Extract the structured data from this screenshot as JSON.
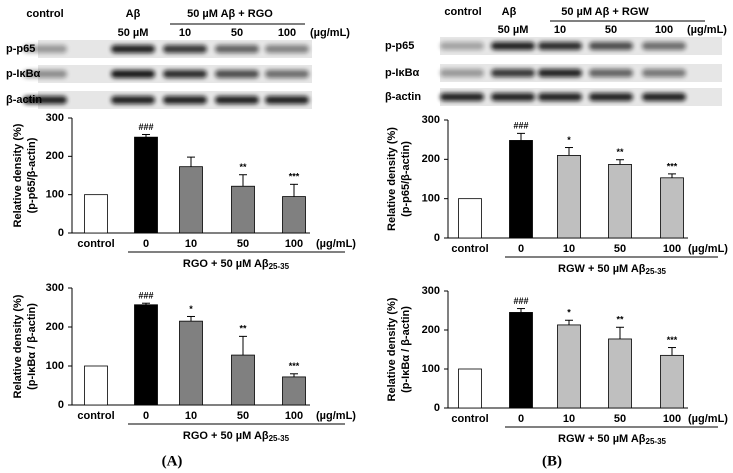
{
  "panels": [
    {
      "label": "(A)",
      "blot": {
        "header": [
          "control",
          "Aβ",
          "50 µM  Aβ  + RGO"
        ],
        "subheader": [
          "50 µM",
          "10",
          "50",
          "100",
          "(µg/mL)"
        ],
        "rows": [
          "p-p65",
          "p-IκBα",
          "β-actin"
        ]
      }
    },
    {
      "label": "(B)",
      "blot": {
        "header": [
          "control",
          "Aβ",
          "50 µM  Aβ  + RGW"
        ],
        "subheader": [
          "50 µM",
          "10",
          "50",
          "100",
          "(µg/mL)"
        ],
        "rows": [
          "p-p65",
          "p-IκBα",
          "β-actin"
        ]
      }
    }
  ],
  "chart_data": [
    {
      "type": "bar",
      "ylabel": [
        "Relative density (%)",
        "(p-p65/β-actin)"
      ],
      "categories": [
        "control",
        "0",
        "10",
        "50",
        "100"
      ],
      "unit": "(µg/mL)",
      "values": [
        100,
        250,
        173,
        122,
        95
      ],
      "errors": [
        null,
        7,
        25,
        30,
        32
      ],
      "bar_labels": [
        null,
        "###",
        null,
        "**",
        "***"
      ],
      "colors": [
        "#ffffff",
        "#000000",
        "#808080",
        "#808080",
        "#808080"
      ],
      "xlabel": "RGO + 50 µM Aβ",
      "xlabel_sub": "25-35",
      "ylim": [
        0,
        300
      ],
      "yticks": [
        0,
        100,
        200,
        300
      ]
    },
    {
      "type": "bar",
      "ylabel": [
        "Relative density (%)",
        "(p-IκBα / β-actin)"
      ],
      "categories": [
        "control",
        "0",
        "10",
        "50",
        "100"
      ],
      "unit": "(µg/mL)",
      "values": [
        100,
        257,
        215,
        128,
        72
      ],
      "errors": [
        null,
        4,
        12,
        48,
        8
      ],
      "bar_labels": [
        null,
        "###",
        "*",
        "**",
        "***"
      ],
      "colors": [
        "#ffffff",
        "#000000",
        "#808080",
        "#808080",
        "#808080"
      ],
      "xlabel": "RGO + 50 µM Aβ",
      "xlabel_sub": "25-35",
      "ylim": [
        0,
        300
      ],
      "yticks": [
        0,
        100,
        200,
        300
      ]
    },
    {
      "type": "bar",
      "ylabel": [
        "Relative density (%)",
        "(p-p65/β-actin)"
      ],
      "categories": [
        "control",
        "0",
        "10",
        "50",
        "100"
      ],
      "unit": "(µg/mL)",
      "values": [
        100,
        248,
        210,
        187,
        153
      ],
      "errors": [
        null,
        18,
        20,
        12,
        10
      ],
      "bar_labels": [
        null,
        "###",
        "*",
        "**",
        "***"
      ],
      "colors": [
        "#ffffff",
        "#000000",
        "#bfbfbf",
        "#bfbfbf",
        "#bfbfbf"
      ],
      "xlabel": "RGW + 50 µM Aβ",
      "xlabel_sub": "25-35",
      "ylim": [
        0,
        300
      ],
      "yticks": [
        0,
        100,
        200,
        300
      ]
    },
    {
      "type": "bar",
      "ylabel": [
        "Relative density (%)",
        "(p-IκBα / β-actin)"
      ],
      "categories": [
        "control",
        "0",
        "10",
        "50",
        "100"
      ],
      "unit": "(µg/mL)",
      "values": [
        100,
        245,
        213,
        177,
        135
      ],
      "errors": [
        null,
        10,
        12,
        30,
        20
      ],
      "bar_labels": [
        null,
        "###",
        "*",
        "**",
        "***"
      ],
      "colors": [
        "#ffffff",
        "#000000",
        "#bfbfbf",
        "#bfbfbf",
        "#bfbfbf"
      ],
      "xlabel": "RGW + 50 µM Aβ",
      "xlabel_sub": "25-35",
      "ylim": [
        0,
        300
      ],
      "yticks": [
        0,
        100,
        200,
        300
      ]
    }
  ]
}
